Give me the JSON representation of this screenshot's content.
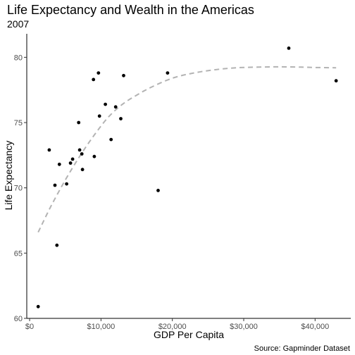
{
  "chart_data": {
    "type": "scatter",
    "title": "Life Expectancy and Wealth in the Americas",
    "subtitle": "2007",
    "xlabel": "GDP Per Capita",
    "ylabel": "Life Expectancy",
    "caption": "Source: Gapminder Dataset",
    "xlim": [
      -400,
      45000
    ],
    "ylim": [
      60,
      81.8
    ],
    "x_ticks": [
      0,
      10000,
      20000,
      30000,
      40000
    ],
    "x_tick_labels": [
      "$0",
      "$10,000",
      "$20,000",
      "$30,000",
      "$40,000"
    ],
    "y_ticks": [
      60,
      65,
      70,
      75,
      80
    ],
    "y_tick_labels": [
      "60",
      "65",
      "70",
      "75",
      "80"
    ],
    "grid": false,
    "point_color": "#000000",
    "trend_color": "#b3b3b3",
    "points": [
      {
        "x": 1201,
        "y": 60.9
      },
      {
        "x": 2749,
        "y": 72.9
      },
      {
        "x": 3548,
        "y": 70.2
      },
      {
        "x": 3822,
        "y": 65.6
      },
      {
        "x": 4173,
        "y": 71.8
      },
      {
        "x": 5186,
        "y": 70.3
      },
      {
        "x": 5728,
        "y": 71.9
      },
      {
        "x": 6025,
        "y": 72.2
      },
      {
        "x": 6873,
        "y": 75.0
      },
      {
        "x": 7009,
        "y": 72.9
      },
      {
        "x": 7321,
        "y": 72.6
      },
      {
        "x": 7409,
        "y": 71.4
      },
      {
        "x": 8948,
        "y": 78.3
      },
      {
        "x": 9066,
        "y": 72.4
      },
      {
        "x": 9645,
        "y": 78.8
      },
      {
        "x": 9787,
        "y": 75.5
      },
      {
        "x": 10611,
        "y": 76.4
      },
      {
        "x": 11416,
        "y": 73.7
      },
      {
        "x": 12057,
        "y": 76.2
      },
      {
        "x": 12779,
        "y": 75.3
      },
      {
        "x": 13172,
        "y": 78.6
      },
      {
        "x": 18009,
        "y": 69.8
      },
      {
        "x": 19329,
        "y": 78.8
      },
      {
        "x": 36319,
        "y": 80.7
      },
      {
        "x": 42952,
        "y": 78.2
      }
    ],
    "trend": {
      "type": "smooth",
      "line_style": "dashed",
      "x": [
        1201,
        3000,
        5000,
        7000,
        9000,
        11000,
        13000,
        15000,
        17000,
        20000,
        23000,
        26000,
        29000,
        32000,
        35000,
        38000,
        40000,
        42952
      ],
      "y": [
        66.6,
        68.6,
        70.6,
        72.4,
        74.0,
        75.4,
        76.4,
        77.1,
        77.7,
        78.4,
        78.8,
        79.05,
        79.2,
        79.25,
        79.27,
        79.25,
        79.22,
        79.2
      ]
    }
  }
}
